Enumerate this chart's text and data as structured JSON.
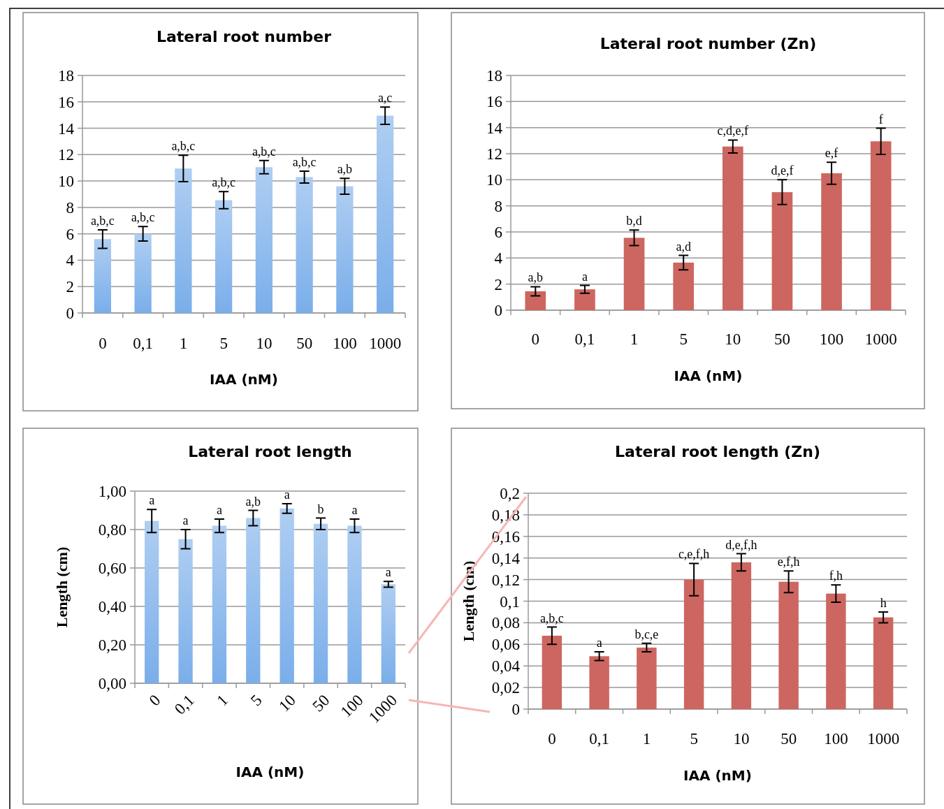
{
  "chart_data": [
    {
      "type": "bar",
      "title": "Lateral root number",
      "xlabel": "IAA (nM)",
      "categories": [
        "0",
        "0,1",
        "1",
        "5",
        "10",
        "50",
        "100",
        "1000"
      ],
      "values": [
        5.6,
        6.0,
        10.95,
        8.55,
        11.05,
        10.3,
        9.6,
        14.95
      ],
      "errors": [
        0.7,
        0.55,
        1.0,
        0.65,
        0.5,
        0.45,
        0.6,
        0.65
      ],
      "color": "#7aaeea",
      "ylim": [
        0,
        18
      ],
      "yticks": [
        0,
        2,
        4,
        6,
        8,
        10,
        12,
        14,
        16,
        18
      ],
      "grid": "y",
      "annotations": [
        {
          "text": "a,b,c",
          "x": "0",
          "y": 6.3
        },
        {
          "text": "a,b,c",
          "x": "0,1",
          "y": 6.55
        },
        {
          "text": "a,b,c",
          "x": "1",
          "y": 11.95
        },
        {
          "text": "a,b,c",
          "x": "5",
          "y": 9.2
        },
        {
          "text": "a,b,c",
          "x": "10",
          "y": 11.55
        },
        {
          "text": "a,b,c",
          "x": "50",
          "y": 10.75
        },
        {
          "text": "a,b",
          "x": "100",
          "y": 10.2
        },
        {
          "text": "a,c",
          "x": "1000",
          "y": 15.6
        }
      ]
    },
    {
      "type": "bar",
      "title": "Lateral root number (Zn)",
      "xlabel": "IAA (nM)",
      "categories": [
        "0",
        "0,1",
        "1",
        "5",
        "10",
        "50",
        "100",
        "1000"
      ],
      "values": [
        1.45,
        1.6,
        5.55,
        3.65,
        12.55,
        9.05,
        10.5,
        12.95
      ],
      "errors": [
        0.35,
        0.3,
        0.6,
        0.55,
        0.5,
        0.95,
        0.85,
        1.0
      ],
      "color": "#cd6660",
      "ylim": [
        0,
        18
      ],
      "yticks": [
        0,
        2,
        4,
        6,
        8,
        10,
        12,
        14,
        16,
        18
      ],
      "grid": "y",
      "annotations": [
        {
          "text": "a,b",
          "x": "0",
          "y": 1.8
        },
        {
          "text": "a",
          "x": "0,1",
          "y": 1.9
        },
        {
          "text": "b,d",
          "x": "1",
          "y": 6.15
        },
        {
          "text": "a,d",
          "x": "5",
          "y": 4.2
        },
        {
          "text": "c,d,e,f",
          "x": "10",
          "y": 13.05
        },
        {
          "text": "d,e,f",
          "x": "50",
          "y": 10.0
        },
        {
          "text": "e,f",
          "x": "100",
          "y": 11.35
        },
        {
          "text": "f",
          "x": "1000",
          "y": 13.95
        }
      ]
    },
    {
      "type": "bar",
      "title": "Lateral root  length",
      "xlabel": "IAA (nM)",
      "ylabel": "Length (cm)",
      "categories": [
        "0",
        "0,1",
        "1",
        "5",
        "10",
        "50",
        "100",
        "1000"
      ],
      "values": [
        0.845,
        0.75,
        0.82,
        0.86,
        0.91,
        0.83,
        0.82,
        0.515
      ],
      "errors": [
        0.06,
        0.05,
        0.035,
        0.04,
        0.025,
        0.03,
        0.035,
        0.015
      ],
      "color": "#7aaeea",
      "ylim": [
        0,
        1
      ],
      "yticks": [
        {
          "value": 0,
          "label": "0,00"
        },
        {
          "value": 0.2,
          "label": "0,20"
        },
        {
          "value": 0.4,
          "label": "0,40"
        },
        {
          "value": 0.6,
          "label": "0,60"
        },
        {
          "value": 0.8,
          "label": "0,80"
        },
        {
          "value": 1,
          "label": "1,00"
        }
      ],
      "grid": "y",
      "annotations": [
        {
          "text": "a",
          "x": "0",
          "y": 0.905
        },
        {
          "text": "a",
          "x": "0,1",
          "y": 0.8
        },
        {
          "text": "a",
          "x": "1",
          "y": 0.855
        },
        {
          "text": "a,b",
          "x": "5",
          "y": 0.9
        },
        {
          "text": "a",
          "x": "10",
          "y": 0.935
        },
        {
          "text": "b",
          "x": "50",
          "y": 0.86
        },
        {
          "text": "a",
          "x": "100",
          "y": 0.855
        },
        {
          "text": "a",
          "x": "1000",
          "y": 0.53
        }
      ]
    },
    {
      "type": "bar",
      "title": "Lateral root length (Zn)",
      "xlabel": "IAA (nM)",
      "ylabel": "Length (cm)",
      "categories": [
        "0",
        "0,1",
        "1",
        "5",
        "10",
        "50",
        "100",
        "1000"
      ],
      "values": [
        0.068,
        0.049,
        0.057,
        0.12,
        0.136,
        0.118,
        0.107,
        0.085
      ],
      "errors": [
        0.008,
        0.004,
        0.004,
        0.015,
        0.008,
        0.01,
        0.008,
        0.005
      ],
      "color": "#cd6660",
      "ylim": [
        0,
        0.2
      ],
      "yticks": [
        0,
        {
          "value": 0.02,
          "label": "0,02"
        },
        {
          "value": 0.04,
          "label": "0,04"
        },
        {
          "value": 0.06,
          "label": "0,06"
        },
        {
          "value": 0.08,
          "label": "0,08"
        },
        {
          "value": 0.1,
          "label": "0,1"
        },
        {
          "value": 0.12,
          "label": "0,12"
        },
        {
          "value": 0.14,
          "label": "0,14"
        },
        {
          "value": 0.16,
          "label": "0,16"
        },
        {
          "value": 0.18,
          "label": "0,18"
        },
        {
          "value": 0.2,
          "label": "0,2"
        }
      ],
      "grid": "y",
      "annotations": [
        {
          "text": "a,b,c",
          "x": "0",
          "y": 0.076
        },
        {
          "text": "a",
          "x": "0,1",
          "y": 0.053
        },
        {
          "text": "b,c,e",
          "x": "1",
          "y": 0.061
        },
        {
          "text": "c,e,f,h",
          "x": "5",
          "y": 0.135
        },
        {
          "text": "d,e,f,h",
          "x": "10",
          "y": 0.144
        },
        {
          "text": "e,f,h",
          "x": "50",
          "y": 0.128
        },
        {
          "text": "f,h",
          "x": "100",
          "y": 0.115
        },
        {
          "text": "h",
          "x": "1000",
          "y": 0.09
        }
      ]
    }
  ]
}
